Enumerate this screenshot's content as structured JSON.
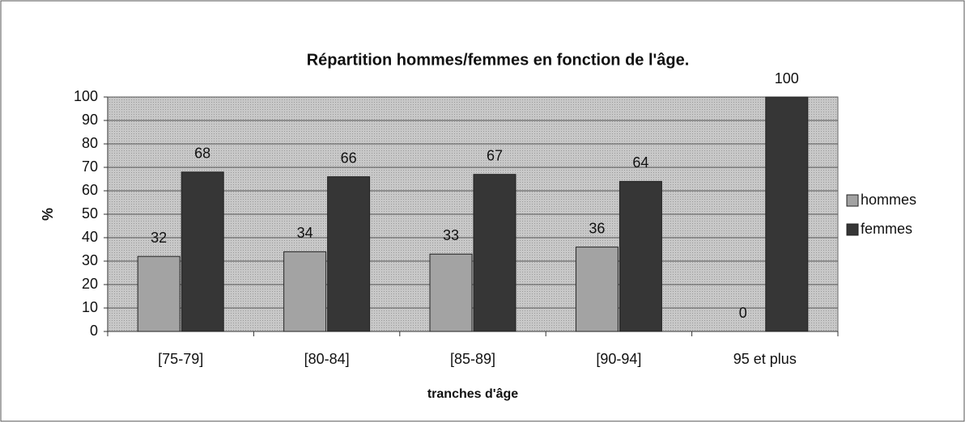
{
  "chart_data": {
    "type": "bar",
    "title": "Répartition hommes/femmes en fonction de l'âge.",
    "x_label": "tranches d'âge",
    "y_label": "%",
    "categories": [
      "[75-79]",
      "[80-84]",
      "[85-89]",
      "[90-94]",
      "95 et plus"
    ],
    "series": [
      {
        "name": "hommes",
        "color": "#a3a3a3",
        "values": [
          32,
          34,
          33,
          36,
          0
        ]
      },
      {
        "name": "femmes",
        "color": "#363636",
        "values": [
          68,
          66,
          67,
          64,
          100
        ]
      }
    ],
    "ylim": [
      0,
      100
    ],
    "yticks": [
      0,
      10,
      20,
      30,
      40,
      50,
      60,
      70,
      80,
      90,
      100
    ],
    "grid": true,
    "legend": "right"
  }
}
